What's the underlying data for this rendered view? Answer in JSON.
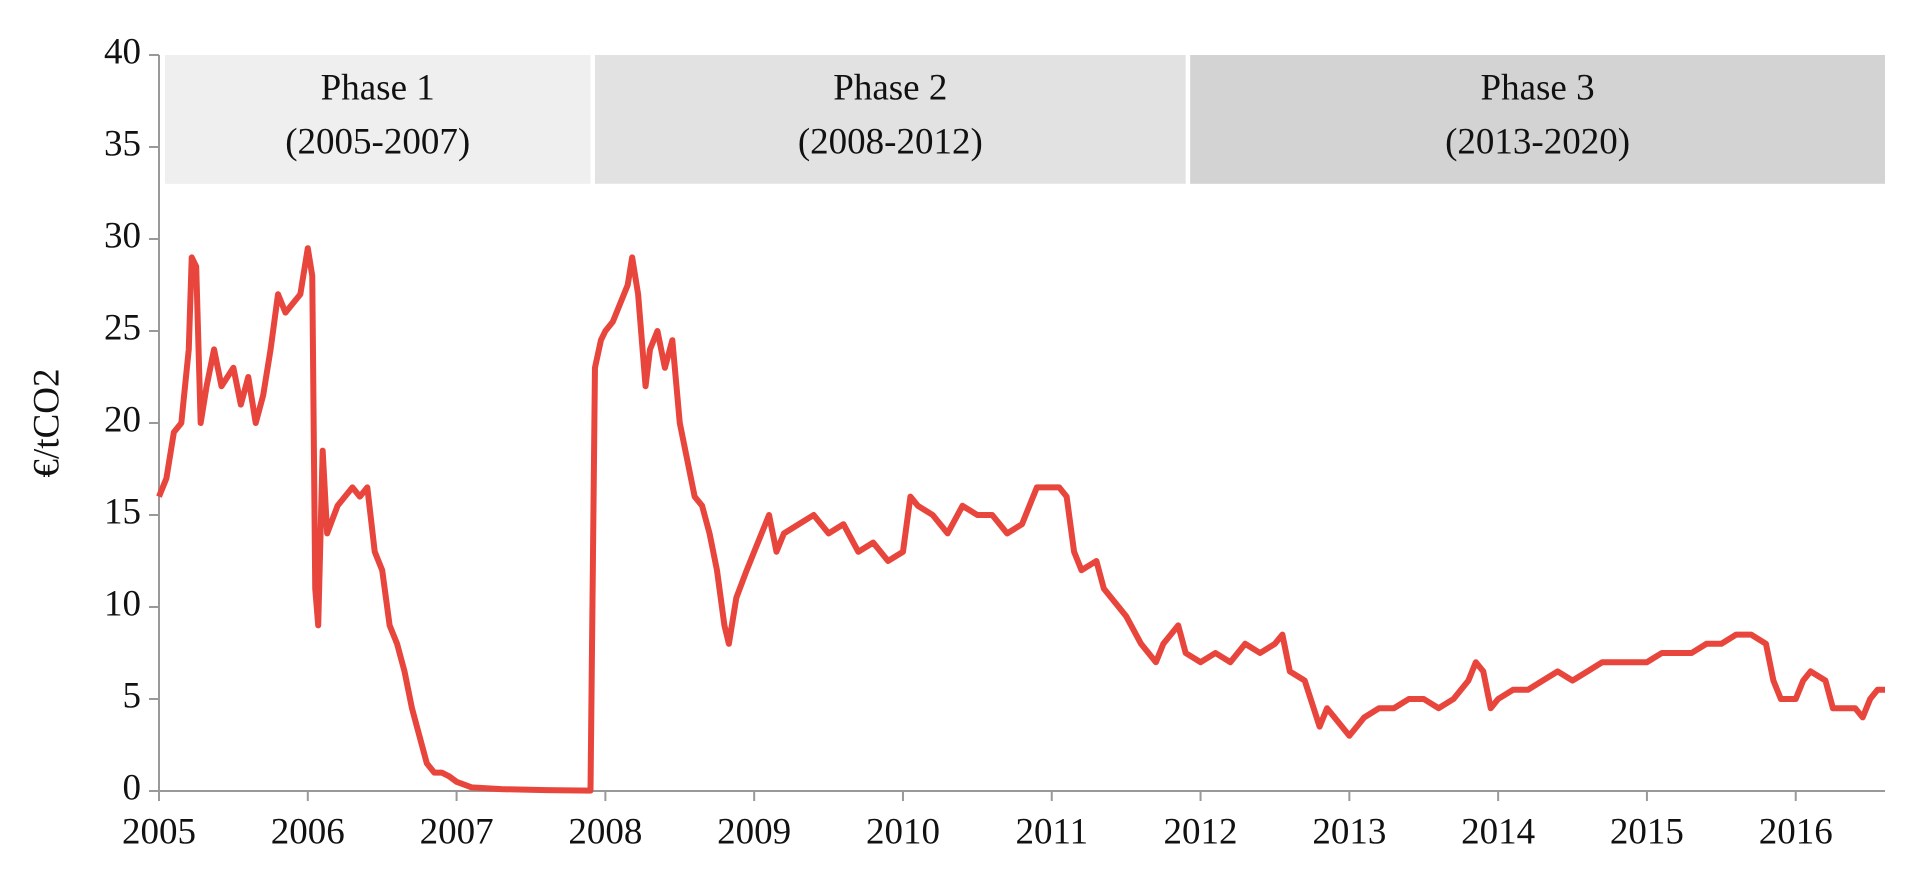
{
  "chart_data": {
    "type": "line",
    "y_label": "€/tCO2",
    "color": "#e8453c",
    "xlim": [
      2005,
      2016.6
    ],
    "xticks": [
      2005,
      2006,
      2007,
      2008,
      2009,
      2010,
      2011,
      2012,
      2013,
      2014,
      2015,
      2016
    ],
    "ylim": [
      0,
      40
    ],
    "yticks": [
      0,
      5,
      10,
      15,
      20,
      25,
      30,
      35,
      40
    ],
    "annotations": [
      {
        "label": "Phase 1",
        "period": "(2005-2007)",
        "xrange": [
          2005.04,
          2007.9
        ],
        "yrange": [
          33,
          40
        ],
        "color": "#efefef"
      },
      {
        "label": "Phase 2",
        "period": "(2008-2012)",
        "xrange": [
          2007.93,
          2011.9
        ],
        "yrange": [
          33,
          40
        ],
        "color": "#e2e2e2"
      },
      {
        "label": "Phase 3",
        "period": "(2013-2020)",
        "xrange": [
          2011.93,
          2016.6
        ],
        "yrange": [
          33,
          40
        ],
        "color": "#d3d3d3"
      }
    ],
    "x": [
      2005.0,
      2005.05,
      2005.1,
      2005.15,
      2005.2,
      2005.22,
      2005.25,
      2005.28,
      2005.32,
      2005.37,
      2005.42,
      2005.5,
      2005.55,
      2005.6,
      2005.65,
      2005.7,
      2005.75,
      2005.8,
      2005.85,
      2005.9,
      2005.95,
      2006.0,
      2006.03,
      2006.05,
      2006.07,
      2006.1,
      2006.13,
      2006.2,
      2006.3,
      2006.35,
      2006.4,
      2006.45,
      2006.5,
      2006.55,
      2006.6,
      2006.65,
      2006.7,
      2006.75,
      2006.8,
      2006.85,
      2006.9,
      2006.95,
      2007.0,
      2007.1,
      2007.3,
      2007.6,
      2007.9,
      2007.93,
      2007.97,
      2008.0,
      2008.05,
      2008.1,
      2008.15,
      2008.18,
      2008.22,
      2008.27,
      2008.3,
      2008.35,
      2008.4,
      2008.45,
      2008.5,
      2008.55,
      2008.6,
      2008.65,
      2008.7,
      2008.75,
      2008.8,
      2008.83,
      2008.88,
      2008.95,
      2009.0,
      2009.05,
      2009.1,
      2009.15,
      2009.2,
      2009.3,
      2009.4,
      2009.5,
      2009.6,
      2009.7,
      2009.8,
      2009.9,
      2010.0,
      2010.05,
      2010.1,
      2010.2,
      2010.3,
      2010.4,
      2010.5,
      2010.6,
      2010.7,
      2010.8,
      2010.9,
      2011.0,
      2011.05,
      2011.1,
      2011.15,
      2011.2,
      2011.3,
      2011.35,
      2011.45,
      2011.5,
      2011.6,
      2011.7,
      2011.75,
      2011.85,
      2011.9,
      2012.0,
      2012.1,
      2012.2,
      2012.3,
      2012.4,
      2012.5,
      2012.55,
      2012.6,
      2012.7,
      2012.8,
      2012.85,
      2012.9,
      2013.0,
      2013.05,
      2013.1,
      2013.2,
      2013.3,
      2013.4,
      2013.5,
      2013.6,
      2013.7,
      2013.8,
      2013.85,
      2013.9,
      2013.95,
      2014.0,
      2014.1,
      2014.2,
      2014.3,
      2014.4,
      2014.5,
      2014.6,
      2014.7,
      2014.8,
      2014.9,
      2015.0,
      2015.1,
      2015.2,
      2015.3,
      2015.4,
      2015.5,
      2015.6,
      2015.7,
      2015.8,
      2015.85,
      2015.9,
      2016.0,
      2016.05,
      2016.1,
      2016.2,
      2016.25,
      2016.35,
      2016.4,
      2016.45,
      2016.5,
      2016.55,
      2016.6
    ],
    "values": [
      16,
      17,
      19.5,
      20,
      24,
      29,
      28.5,
      20,
      22,
      24,
      22,
      23,
      21,
      22.5,
      20,
      21.5,
      24,
      27,
      26,
      26.5,
      27,
      29.5,
      28,
      11,
      9,
      18.5,
      14,
      15.5,
      16.5,
      16,
      16.5,
      13,
      12,
      9,
      8,
      6.5,
      4.5,
      3,
      1.5,
      1,
      1,
      0.8,
      0.5,
      0.2,
      0.1,
      0.05,
      0.02,
      23,
      24.5,
      25,
      25.5,
      26.5,
      27.5,
      29,
      27,
      22,
      24,
      25,
      23,
      24.5,
      20,
      18,
      16,
      15.5,
      14,
      12,
      9,
      8,
      10.5,
      12,
      13,
      14,
      15,
      13,
      14,
      14.5,
      15,
      14,
      14.5,
      13,
      13.5,
      12.5,
      13,
      16,
      15.5,
      15,
      14,
      15.5,
      15,
      15,
      14,
      14.5,
      16.5,
      16.5,
      16.5,
      16,
      13,
      12,
      12.5,
      11,
      10,
      9.5,
      8,
      7,
      8,
      9,
      7.5,
      7,
      7.5,
      7,
      8,
      7.5,
      8,
      8.5,
      6.5,
      6,
      3.5,
      4.5,
      4,
      3,
      3.5,
      4,
      4.5,
      4.5,
      5,
      5,
      4.5,
      5,
      6,
      7,
      6.5,
      4.5,
      5,
      5.5,
      5.5,
      6,
      6.5,
      6,
      6.5,
      7,
      7,
      7,
      7,
      7.5,
      7.5,
      7.5,
      8,
      8,
      8.5,
      8.5,
      8,
      6,
      5,
      5,
      6,
      6.5,
      6,
      4.5,
      4.5,
      4.5,
      4,
      5,
      5.5,
      5.5
    ]
  }
}
